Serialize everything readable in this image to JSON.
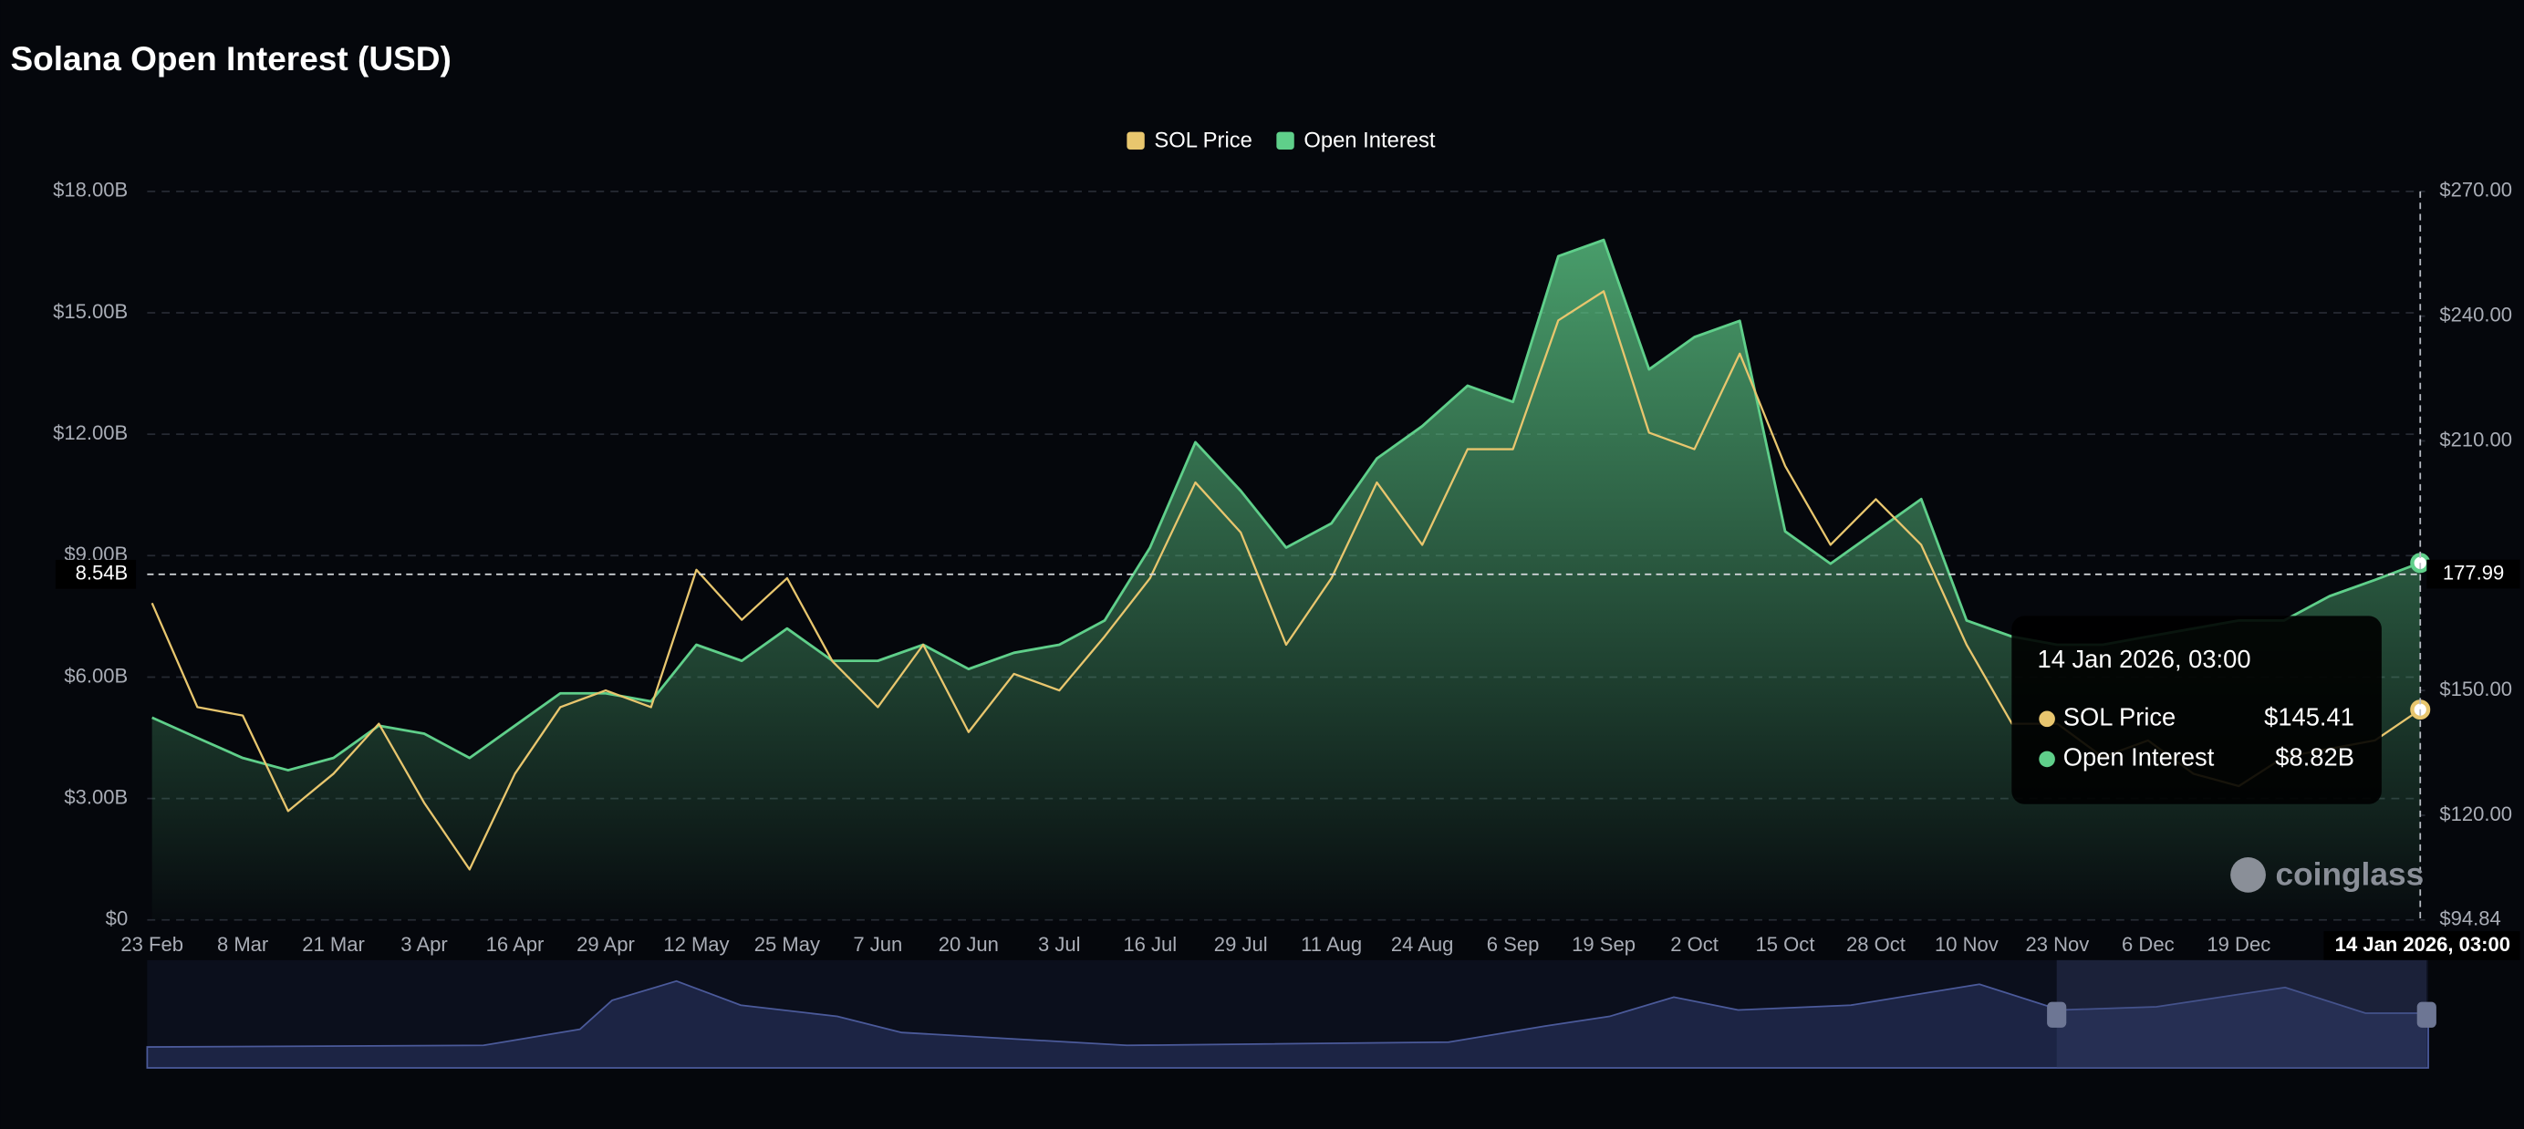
{
  "chart_data": {
    "type": "line",
    "title": "Solana Open Interest (USD)",
    "categories": [
      "23 Feb",
      null,
      "8 Mar",
      null,
      "21 Mar",
      null,
      "3 Apr",
      null,
      "16 Apr",
      null,
      "29 Apr",
      null,
      "12 May",
      null,
      "25 May",
      null,
      "7 Jun",
      null,
      "20 Jun",
      null,
      "3 Jul",
      null,
      "16 Jul",
      null,
      "29 Jul",
      null,
      "11 Aug",
      null,
      "24 Aug",
      null,
      "6 Sep",
      null,
      "19 Sep",
      null,
      "2 Oct",
      null,
      "15 Oct",
      null,
      "28 Oct",
      null,
      "10 Nov",
      null,
      "23 Nov",
      null,
      "6 Dec",
      null,
      "19 Dec",
      null,
      null,
      null,
      "14 Jan 2026, 03:00"
    ],
    "series": [
      {
        "name": "SOL Price",
        "color": "#e8c66e",
        "axis": "y2",
        "values": [
          171,
          146,
          144,
          121,
          130,
          142,
          123,
          107,
          130,
          146,
          150,
          146,
          179,
          167,
          177,
          157,
          146,
          161,
          140,
          154,
          150,
          163,
          177,
          200,
          188,
          161,
          177,
          200,
          185,
          208,
          208,
          239,
          246,
          212,
          208,
          231,
          204,
          185,
          196,
          185,
          161,
          142,
          142,
          134,
          138,
          130,
          127,
          134,
          136,
          138,
          145.41
        ]
      },
      {
        "name": "Open Interest",
        "color": "#5fcf8a",
        "values": [
          5.0,
          4.5,
          4.0,
          3.7,
          4.0,
          4.8,
          4.6,
          4.0,
          4.8,
          5.6,
          5.6,
          5.4,
          6.8,
          6.4,
          7.2,
          6.4,
          6.4,
          6.8,
          6.2,
          6.6,
          6.8,
          7.4,
          9.2,
          11.8,
          10.6,
          9.2,
          9.8,
          11.4,
          12.2,
          13.2,
          12.8,
          16.4,
          16.8,
          13.6,
          14.4,
          14.8,
          9.6,
          8.8,
          9.6,
          10.4,
          7.4,
          7.0,
          6.8,
          6.8,
          7.0,
          7.2,
          7.4,
          7.4,
          8.0,
          8.4,
          8.82
        ]
      }
    ],
    "ylim": [
      0,
      18
    ],
    "yticks": [
      {
        "value": 0,
        "label": "$0"
      },
      {
        "value": 3,
        "label": "$3.00B"
      },
      {
        "value": 6,
        "label": "$6.00B"
      },
      {
        "value": 9,
        "label": "$9.00B"
      },
      {
        "value": 12,
        "label": "$12.00B"
      },
      {
        "value": 15,
        "label": "$15.00B"
      },
      {
        "value": 18,
        "label": "$18.00B"
      }
    ],
    "y2lim": [
      94.84,
      270
    ],
    "y2ticks": [
      {
        "value": 94.84,
        "label": "$94.84"
      },
      {
        "value": 120,
        "label": "$120.00"
      },
      {
        "value": 150,
        "label": "$150.00"
      },
      {
        "value": 210,
        "label": "$210.00"
      },
      {
        "value": 240,
        "label": "$240.00"
      },
      {
        "value": 270,
        "label": "$270.00"
      }
    ],
    "grid": true,
    "legend": "top",
    "crosshair": {
      "y": {
        "value": 8.54,
        "label": "8.54B"
      },
      "y2": 177.99
    },
    "tooltip": {
      "title": "14 Jan 2026, 03:00",
      "rows": [
        {
          "name": "SOL Price",
          "value_label": "$145.41"
        },
        {
          "name": "Open Interest",
          "value_label": "$8.82B"
        }
      ]
    },
    "watermark": "coinglass"
  }
}
